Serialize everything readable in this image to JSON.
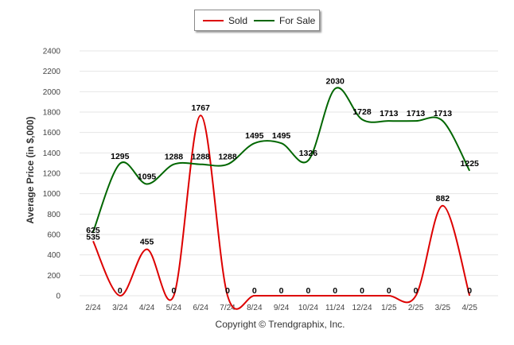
{
  "chart_data": {
    "type": "line",
    "categories": [
      "2/24",
      "3/24",
      "4/24",
      "5/24",
      "6/24",
      "7/24",
      "8/24",
      "9/24",
      "10/24",
      "11/24",
      "12/24",
      "1/25",
      "2/25",
      "3/25",
      "4/25"
    ],
    "series": [
      {
        "name": "Sold",
        "color": "#dd0000",
        "values": [
          535,
          0,
          455,
          0,
          1767,
          0,
          0,
          0,
          0,
          0,
          0,
          0,
          0,
          882,
          0
        ]
      },
      {
        "name": "For Sale",
        "color": "#006600",
        "values": [
          625,
          1295,
          1095,
          1288,
          1288,
          1288,
          1495,
          1495,
          1326,
          2030,
          1728,
          1713,
          1713,
          1713,
          1225
        ]
      }
    ],
    "xlabel": "",
    "ylabel": "Average Price (in $,000)",
    "ylim": [
      0,
      2400
    ],
    "yticks": [
      0,
      200,
      400,
      600,
      800,
      1000,
      1200,
      1400,
      1600,
      1800,
      2000,
      2200,
      2400
    ],
    "grid": true,
    "legend_position": "top-center",
    "credit": "Copyright © Trendgraphix, Inc."
  }
}
